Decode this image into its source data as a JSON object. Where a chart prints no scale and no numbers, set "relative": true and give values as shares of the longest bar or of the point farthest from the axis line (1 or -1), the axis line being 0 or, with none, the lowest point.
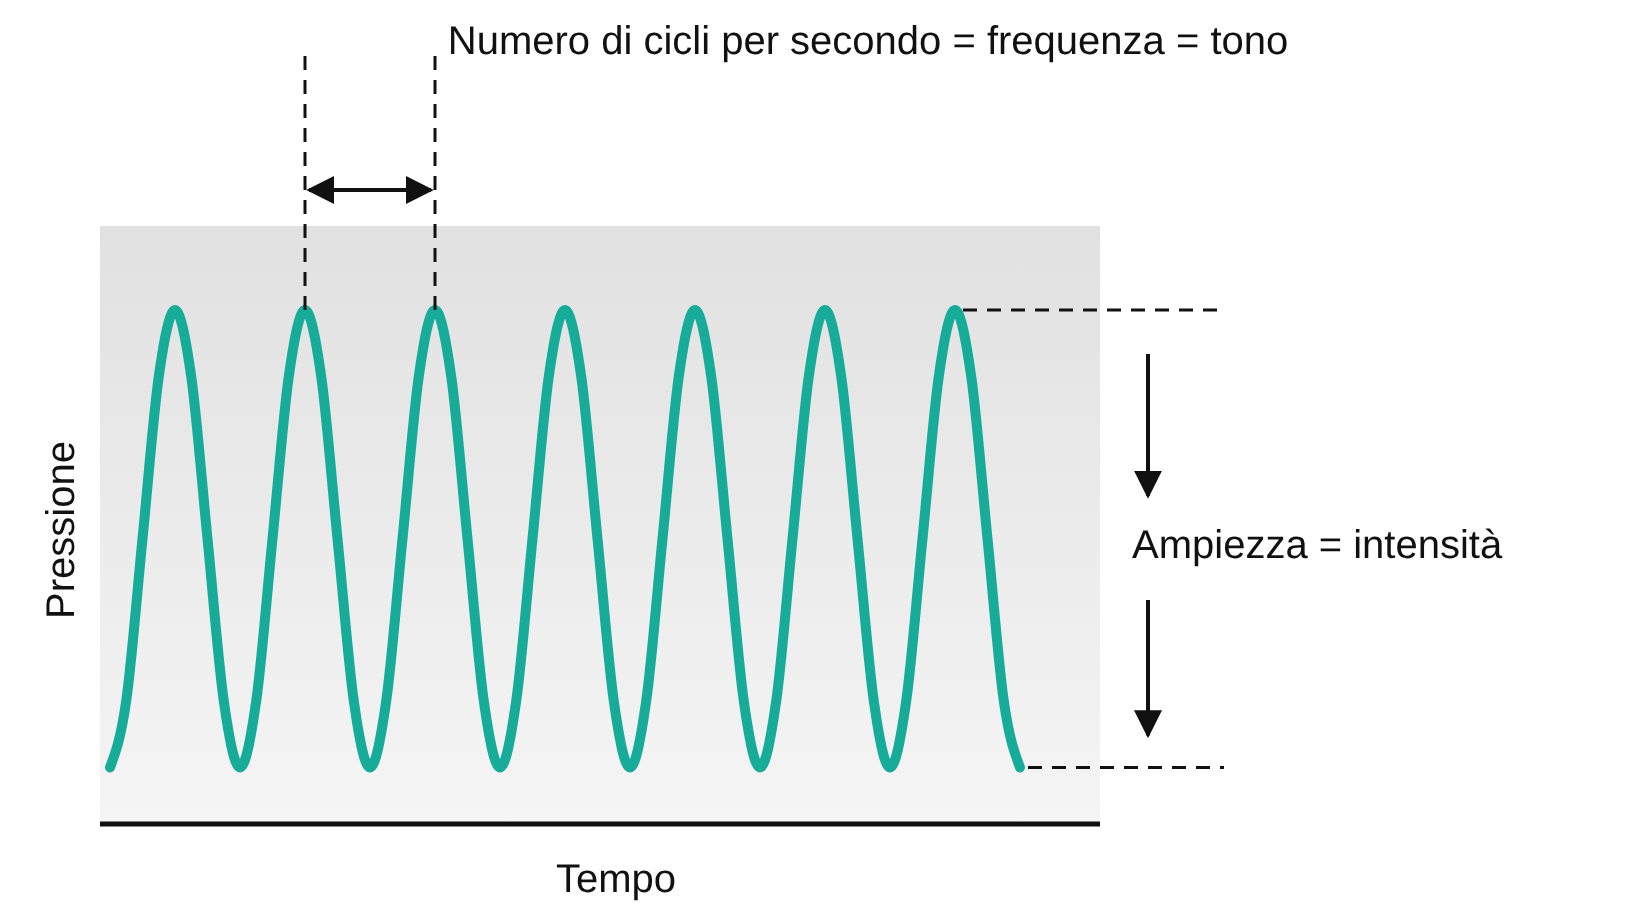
{
  "chart_data": {
    "type": "line",
    "relative": true,
    "xlabel": "Tempo",
    "ylabel": "Pressione",
    "categories": [
      null,
      null,
      null,
      null,
      null,
      null,
      null,
      null,
      null,
      null,
      null,
      null,
      null,
      null,
      null,
      null,
      null,
      null,
      null,
      null,
      null,
      null,
      null,
      null,
      null,
      null,
      null,
      null,
      null,
      null,
      null,
      null,
      null,
      null,
      null,
      null,
      null,
      null,
      null,
      null,
      null,
      null,
      null,
      null,
      null,
      null,
      null,
      null,
      null,
      null,
      null,
      null,
      null,
      null,
      null,
      null,
      null
    ],
    "series": [
      {
        "color": "#17ab99",
        "values": [
          0.11,
          0.24,
          0.555,
          0.87,
          1,
          0.87,
          0.555,
          0.24,
          0.11,
          0.24,
          0.555,
          0.87,
          1,
          0.87,
          0.555,
          0.24,
          0.11,
          0.24,
          0.555,
          0.87,
          1,
          0.87,
          0.555,
          0.24,
          0.11,
          0.24,
          0.555,
          0.87,
          1,
          0.87,
          0.555,
          0.24,
          0.11,
          0.24,
          0.555,
          0.87,
          1,
          0.87,
          0.555,
          0.24,
          0.11,
          0.24,
          0.555,
          0.87,
          1,
          0.87,
          0.555,
          0.24,
          0.11,
          0.24,
          0.555,
          0.87,
          1,
          0.87,
          0.555,
          0.24,
          0.11
        ]
      }
    ],
    "annotations": [
      "Numero di cicli per secondo = frequenza = tono",
      "Ampiezza = intensità"
    ]
  }
}
